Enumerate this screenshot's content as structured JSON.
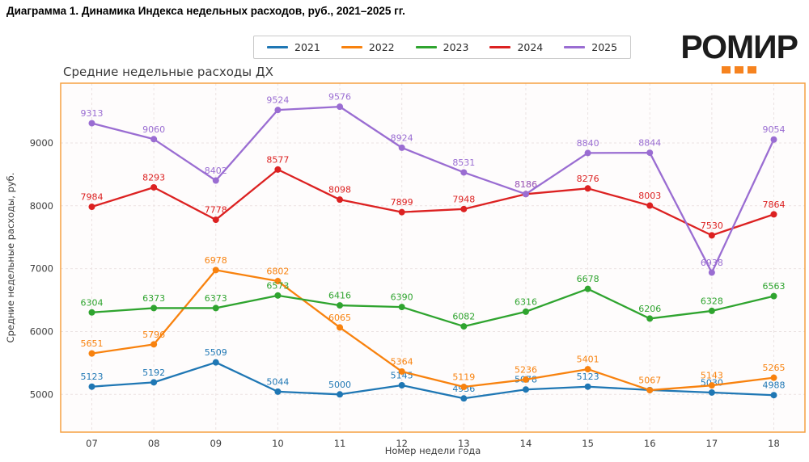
{
  "page": {
    "title": "Диаграмма 1. Динамика Индекса недельных расходов, руб., 2021–2025 гг."
  },
  "logo": {
    "text": "РОМИР",
    "text_color": "#1C1C1C",
    "squares_color": "#F6831F"
  },
  "chart_data": {
    "type": "line",
    "title": "Средние недельные расходы ДХ",
    "xlabel": "Номер недели года",
    "ylabel": "Средние недельные расходы, руб.",
    "x": [
      "07",
      "08",
      "09",
      "10",
      "11",
      "12",
      "13",
      "14",
      "15",
      "16",
      "17",
      "18"
    ],
    "yticks": [
      5000,
      6000,
      7000,
      8000,
      9000
    ],
    "ylim": [
      4400,
      9950
    ],
    "grid": "dashed-both",
    "grid_color": "#EBE2E2",
    "frame_color": "#F5A142",
    "plot_bg": "#FEFCFC",
    "tick_color": "#3C3C3C",
    "legend_position": "top-center",
    "series": [
      {
        "name": "2021",
        "color": "#1F77B4",
        "values": [
          5123,
          5192,
          5509,
          5044,
          5000,
          5145,
          4936,
          5078,
          5123,
          5070,
          5030,
          4988
        ],
        "labels": [
          "5123",
          "5192",
          "5509",
          "5044",
          "5000",
          "5145",
          "4936",
          "5078",
          "5123",
          "",
          "5030",
          "4988"
        ]
      },
      {
        "name": "2022",
        "color": "#F8820E",
        "values": [
          5651,
          5796,
          6978,
          6802,
          6065,
          5364,
          5119,
          5236,
          5401,
          5067,
          5143,
          5265
        ],
        "labels": [
          "5651",
          "5796",
          "6978",
          "6802",
          "6065",
          "5364",
          "5119",
          "5236",
          "5401",
          "5067",
          "5143",
          "5265"
        ]
      },
      {
        "name": "2023",
        "color": "#2FA42F",
        "values": [
          6304,
          6373,
          6373,
          6573,
          6416,
          6390,
          6082,
          6316,
          6678,
          6206,
          6328,
          6563
        ],
        "labels": [
          "6304",
          "6373",
          "6373",
          "6573",
          "6416",
          "6390",
          "6082",
          "6316",
          "6678",
          "6206",
          "6328",
          "6563"
        ]
      },
      {
        "name": "2024",
        "color": "#DC2121",
        "values": [
          7984,
          8293,
          7778,
          8577,
          8098,
          7899,
          7948,
          8186,
          8276,
          8003,
          7530,
          7864
        ],
        "labels": [
          "7984",
          "8293",
          "7778",
          "8577",
          "8098",
          "7899",
          "7948",
          "8186",
          "8276",
          "8003",
          "7530",
          "7864"
        ]
      },
      {
        "name": "2025",
        "color": "#9A6DD2",
        "values": [
          9313,
          9060,
          8402,
          9524,
          9576,
          8924,
          8531,
          8186,
          8840,
          8844,
          6938,
          9054
        ],
        "labels": [
          "9313",
          "9060",
          "8402",
          "9524",
          "9576",
          "8924",
          "8531",
          "8186",
          "8840",
          "8844",
          "6938",
          "9054"
        ]
      }
    ]
  }
}
